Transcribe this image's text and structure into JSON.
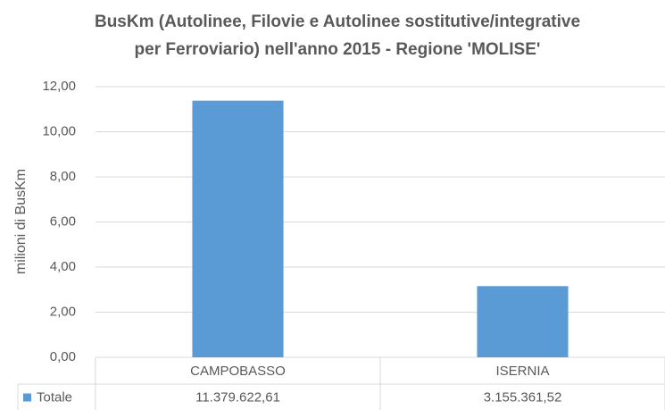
{
  "chart_data": {
    "type": "bar",
    "title": [
      "BusKm (Autolinee, Filovie e Autolinee sostitutive/integrative",
      "per Ferroviario) nell'anno 2015 - Regione 'MOLISE'"
    ],
    "y_label": "milioni di BusKm",
    "categories": [
      "CAMPOBASSO",
      "ISERNIA"
    ],
    "series": [
      {
        "name": "Totale",
        "color": "#5b9bd5",
        "values": [
          11.37962261,
          3.15536152
        ],
        "value_labels": [
          "11.379.622,61",
          "3.155.361,52"
        ]
      }
    ],
    "ylim": [
      0,
      12
    ],
    "yticks": [
      {
        "value": 0,
        "label": "0,00"
      },
      {
        "value": 2,
        "label": "2,00"
      },
      {
        "value": 4,
        "label": "4,00"
      },
      {
        "value": 6,
        "label": "6,00"
      },
      {
        "value": 8,
        "label": "8,00"
      },
      {
        "value": 10,
        "label": "10,00"
      },
      {
        "value": 12,
        "label": "12,00"
      }
    ],
    "grid": true,
    "data_table": true
  }
}
